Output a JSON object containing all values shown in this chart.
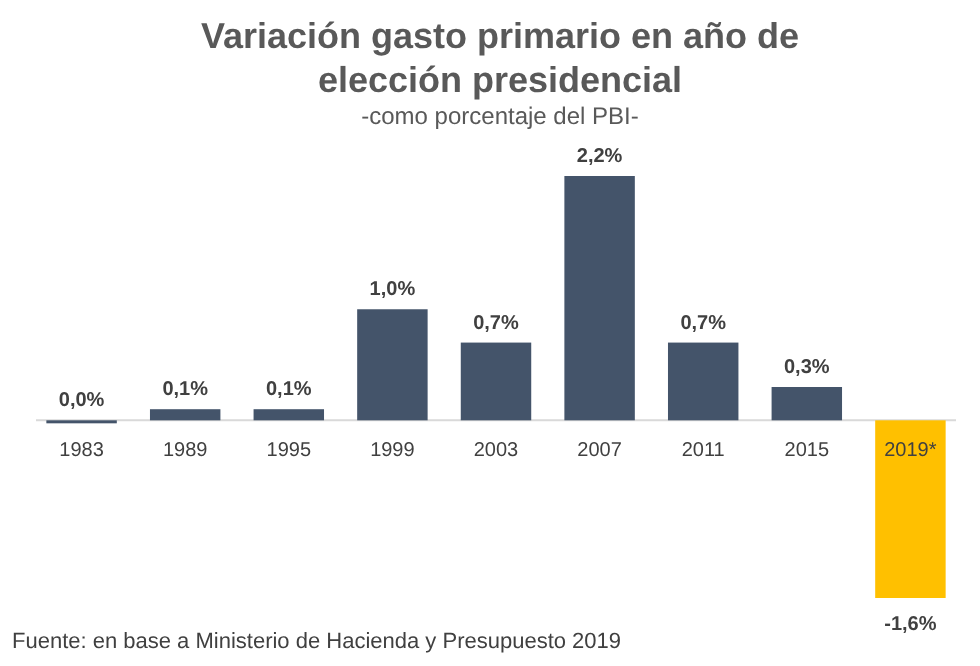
{
  "chart_data": {
    "type": "bar",
    "title": "Variación gasto primario en año de elección presidencial",
    "subtitle": "-como porcentaje del PBI-",
    "categories": [
      "1983",
      "1989",
      "1995",
      "1999",
      "2003",
      "2007",
      "2011",
      "2015",
      "2019*"
    ],
    "values": [
      0.0,
      0.1,
      0.1,
      1.0,
      0.7,
      2.2,
      0.7,
      0.3,
      -1.6
    ],
    "colors": [
      "#44546a",
      "#44546a",
      "#44546a",
      "#44546a",
      "#44546a",
      "#44546a",
      "#44546a",
      "#44546a",
      "#ffc000"
    ],
    "value_labels": [
      "0,0%",
      "0,1%",
      "0,1%",
      "1,0%",
      "0,7%",
      "2,2%",
      "0,7%",
      "0,3%",
      "-1,6%"
    ],
    "annotations": [
      "Fuente: en base a Ministerio de Hacienda y Presupuesto 2019"
    ]
  }
}
